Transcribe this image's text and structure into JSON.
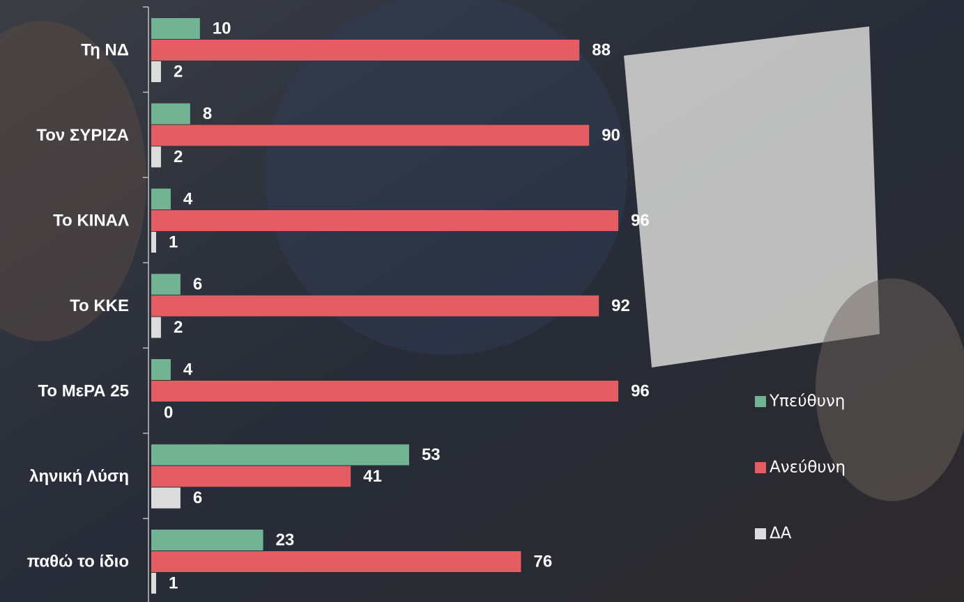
{
  "chart_data": {
    "type": "bar",
    "orientation": "horizontal",
    "categories": [
      "Τη ΝΔ",
      "Τον ΣΥΡΙΖΑ",
      "Το ΚΙΝΑΛ",
      "Το ΚΚΕ",
      "Το ΜεΡΑ 25",
      "ληνική Λύση",
      "παθώ το ίδιο"
    ],
    "series": [
      {
        "name": "Υπεύθυνη",
        "color": "#72b393",
        "values": [
          10,
          8,
          4,
          6,
          4,
          53,
          23
        ]
      },
      {
        "name": "Ανεύθυνη",
        "color": "#e35d62",
        "values": [
          88,
          90,
          96,
          92,
          96,
          41,
          76
        ]
      },
      {
        "name": "ΔΑ",
        "color": "#dcdcdc",
        "values": [
          2,
          2,
          1,
          2,
          0,
          6,
          1
        ]
      }
    ],
    "xlim": [
      0,
      100
    ],
    "legend": "right"
  }
}
